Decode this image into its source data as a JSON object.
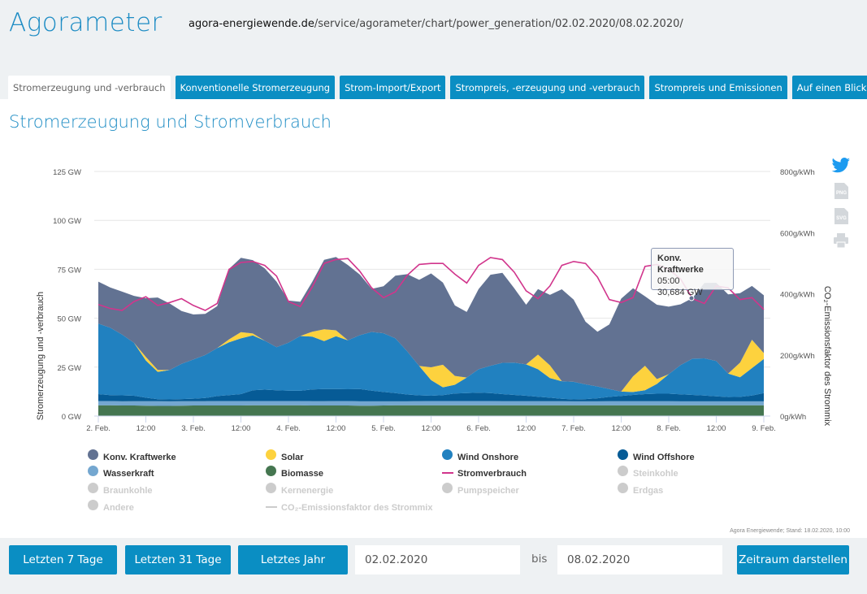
{
  "header": {
    "logo": "Agorameter",
    "url_domain": "agora-energiewende.de",
    "url_path": "/service/agorameter/chart/power_generation/02.02.2020/08.02.2020/"
  },
  "tabs": [
    {
      "label": "Stromerzeugung und -verbrauch",
      "active": true
    },
    {
      "label": "Konventionelle Stromerzeugung",
      "active": false
    },
    {
      "label": "Strom-Import/Export",
      "active": false
    },
    {
      "label": "Strompreis, -erzeugung und -verbrauch",
      "active": false
    },
    {
      "label": "Strompreis und Emissionen",
      "active": false
    },
    {
      "label": "Auf einen Blick",
      "active": false
    }
  ],
  "page_title": "Stromerzeugung und Stromverbrauch",
  "share": {
    "twitter_icon": "twitter-icon",
    "png_label": "PNG",
    "svg_label": "SVG",
    "print_icon": "print-icon"
  },
  "tooltip": {
    "series": "Konv. Kraftwerke",
    "time": "05:00",
    "value": "30,684 GW"
  },
  "credit": "Agora Energiewende; Stand: 18.02.2020, 10:00",
  "footer": {
    "btn_7": "Letzten 7 Tage",
    "btn_31": "Letzten 31 Tage",
    "btn_year": "Letztes Jahr",
    "from_value": "02.02.2020",
    "bis": "bis",
    "to_value": "08.02.2020",
    "submit": "Zeitraum darstellen"
  },
  "chart_data": {
    "type": "area",
    "stacked": true,
    "title": "Stromerzeugung und Stromverbrauch",
    "xlabel": "",
    "ylabel": "Stromerzeugung und -verbrauch",
    "ylabel_right": "CO₂-Emissionsfaktor des Strommix",
    "ylim": [
      0,
      125
    ],
    "ylim_right": [
      0,
      800
    ],
    "y_ticks": [
      "0 GW",
      "25 GW",
      "50 GW",
      "75 GW",
      "100 GW",
      "125 GW"
    ],
    "y_ticks_right": [
      "0g/kWh",
      "200g/kWh",
      "400g/kWh",
      "600g/kWh",
      "800g/kWh"
    ],
    "x_ticks": [
      "2. Feb.",
      "12:00",
      "3. Feb.",
      "12:00",
      "4. Feb.",
      "12:00",
      "5. Feb.",
      "12:00",
      "6. Feb.",
      "12:00",
      "7. Feb.",
      "12:00",
      "8. Feb.",
      "12:00",
      "9. Feb."
    ],
    "x_unit": "hours since 2. Feb. 00:00",
    "x_step_hours": 3,
    "x_count": 57,
    "grid": true,
    "legend_position": "bottom",
    "series": [
      {
        "name": "Biomasse",
        "color": "#457650",
        "visible": true,
        "values": [
          5.5,
          5.5,
          5.4,
          5.4,
          5.3,
          5.2,
          5.2,
          5.3,
          5.4,
          5.4,
          5.4,
          5.4,
          5.4,
          5.5,
          5.5,
          5.5,
          5.5,
          5.5,
          5.4,
          5.4,
          5.4,
          5.4,
          5.3,
          5.3,
          5.4,
          5.5,
          5.5,
          5.5,
          5.5,
          5.5,
          5.5,
          5.5,
          5.5,
          5.5,
          5.5,
          5.5,
          5.5,
          5.5,
          5.5,
          5.5,
          5.5,
          5.5,
          5.5,
          5.5,
          5.5,
          5.5,
          5.5,
          5.5,
          5.5,
          5.5,
          5.5,
          5.5,
          5.5,
          5.5,
          5.5,
          5.5,
          5.5
        ]
      },
      {
        "name": "Wasserkraft",
        "color": "#74a7d0",
        "visible": true,
        "values": [
          2.2,
          2.2,
          2.1,
          2.2,
          2.3,
          2.4,
          2.3,
          2.3,
          2.2,
          2.2,
          2.3,
          2.3,
          2.3,
          2.2,
          2.2,
          2.2,
          2.2,
          2.2,
          2.2,
          2.2,
          2.3,
          2.3,
          2.2,
          2.2,
          2.1,
          2.0,
          2.0,
          2.1,
          2.2,
          2.2,
          2.2,
          2.2,
          2.2,
          2.2,
          2.1,
          2.1,
          2.1,
          2.1,
          2.1,
          2.1,
          2.0,
          2.0,
          2.0,
          2.1,
          2.1,
          2.1,
          2.1,
          2.1,
          2.1,
          2.0,
          2.0,
          2.0,
          2.0,
          2.0,
          2.0,
          2.0,
          2.0
        ]
      },
      {
        "name": "Wind Offshore",
        "color": "#065b96",
        "visible": true,
        "values": [
          3.5,
          3.0,
          3.1,
          2.8,
          1.8,
          1.0,
          1.0,
          1.1,
          1.3,
          1.6,
          2.5,
          3.0,
          3.5,
          5.5,
          5.8,
          5.5,
          5.3,
          5.2,
          6.0,
          6.2,
          6.1,
          6.0,
          6.3,
          5.5,
          4.8,
          4.2,
          3.5,
          3.0,
          2.7,
          3.0,
          3.8,
          4.0,
          4.2,
          4.0,
          3.6,
          3.2,
          2.8,
          2.3,
          1.8,
          1.2,
          1.0,
          1.2,
          1.6,
          2.2,
          2.7,
          3.2,
          3.6,
          3.8,
          3.8,
          3.6,
          3.3,
          3.0,
          2.6,
          2.2,
          2.3,
          3.0,
          4.2
        ]
      },
      {
        "name": "Wind Onshore",
        "color": "#2181c0",
        "visible": true,
        "values": [
          36.0,
          34.5,
          31.0,
          27.0,
          19.0,
          14.0,
          15.0,
          18.0,
          20.0,
          22.0,
          24.5,
          27.0,
          28.5,
          28.0,
          25.0,
          22.0,
          24.5,
          28.0,
          27.0,
          24.5,
          27.0,
          25.0,
          27.5,
          30.0,
          30.0,
          28.0,
          22.0,
          15.0,
          8.0,
          4.0,
          4.5,
          8.0,
          12.0,
          14.0,
          16.0,
          16.5,
          16.0,
          14.0,
          10.0,
          9.0,
          9.0,
          7.5,
          6.0,
          4.0,
          2.2,
          1.5,
          2.0,
          5.0,
          10.0,
          15.0,
          18.5,
          19.0,
          18.0,
          12.0,
          10.0,
          14.0,
          17.5
        ]
      },
      {
        "name": "Solar",
        "color": "#fdd23e",
        "visible": true,
        "values": [
          0,
          0,
          0,
          0,
          1.8,
          1.0,
          0,
          0,
          0,
          0,
          0,
          1.5,
          3.2,
          1.0,
          0,
          0,
          0,
          0,
          2.5,
          6.0,
          3.0,
          0,
          0,
          0,
          0,
          0,
          0,
          0,
          6.5,
          11.5,
          4.5,
          0,
          0,
          0,
          0,
          0,
          0,
          7.5,
          6.5,
          0,
          0,
          0,
          0,
          0,
          0,
          8.0,
          12.5,
          2.5,
          0,
          0,
          0,
          0,
          0,
          0,
          7.5,
          14.5,
          3.0
        ]
      },
      {
        "name": "Konv. Kraftwerke",
        "color": "#627292",
        "visible": true,
        "values": [
          21.5,
          20.5,
          22.0,
          24.0,
          30.0,
          37.0,
          34.0,
          27.0,
          23.0,
          21.0,
          21.5,
          36.0,
          38.0,
          37.5,
          37.0,
          33.5,
          21.5,
          17.5,
          25.5,
          35.5,
          37.5,
          38.5,
          31.0,
          22.0,
          24.0,
          32.0,
          39.5,
          44.0,
          48.0,
          42.0,
          36.0,
          33.5,
          41.0,
          46.5,
          46.0,
          38.0,
          30.5,
          33.5,
          36.0,
          47.0,
          42.0,
          32.0,
          28.0,
          33.0,
          47.5,
          45.0,
          35.5,
          38.0,
          34.5,
          31.0,
          31.0,
          38.5,
          40.0,
          40.5,
          35.5,
          27.5,
          29.5
        ]
      }
    ],
    "line_series": [
      {
        "name": "Stromverbrauch",
        "color": "#d1358c",
        "visible": true,
        "values": [
          57.0,
          55.0,
          54.0,
          58.5,
          61.0,
          56.5,
          58.0,
          60.0,
          56.5,
          54.0,
          57.5,
          75.0,
          78.5,
          79.0,
          77.0,
          71.5,
          58.5,
          56.0,
          66.0,
          78.0,
          80.0,
          80.5,
          74.0,
          65.5,
          60.5,
          63.5,
          72.0,
          77.5,
          78.0,
          78.0,
          72.5,
          68.0,
          77.0,
          81.0,
          80.0,
          73.5,
          64.0,
          60.0,
          66.5,
          77.0,
          79.0,
          78.0,
          71.0,
          59.5,
          58.0,
          60.5,
          76.5,
          77.5,
          75.0,
          70.0,
          60.0,
          57.5,
          66.5,
          65.5,
          59.5,
          60.5,
          54.5
        ]
      },
      {
        "name": "CO₂-Emissionsfaktor des Strommix",
        "color": "#cccccc",
        "visible": false,
        "values": []
      }
    ],
    "hidden_series": [
      "Steinkohle",
      "Braunkohle",
      "Kernenergie",
      "Pumpspeicher",
      "Erdgas",
      "Andere"
    ],
    "legend": [
      {
        "name": "Konv. Kraftwerke",
        "color": "#627292",
        "kind": "dot",
        "visible": true
      },
      {
        "name": "Solar",
        "color": "#fdd23e",
        "kind": "dot",
        "visible": true
      },
      {
        "name": "Wind Onshore",
        "color": "#2181c0",
        "kind": "dot",
        "visible": true
      },
      {
        "name": "Wind Offshore",
        "color": "#065b96",
        "kind": "dot",
        "visible": true
      },
      {
        "name": "Wasserkraft",
        "color": "#74a7d0",
        "kind": "dot",
        "visible": true
      },
      {
        "name": "Biomasse",
        "color": "#457650",
        "kind": "dot",
        "visible": true
      },
      {
        "name": "Stromverbrauch",
        "color": "#d1358c",
        "kind": "line",
        "visible": true
      },
      {
        "name": "Steinkohle",
        "color": "#cccccc",
        "kind": "dot",
        "visible": false
      },
      {
        "name": "Braunkohle",
        "color": "#cccccc",
        "kind": "dot",
        "visible": false
      },
      {
        "name": "Kernenergie",
        "color": "#cccccc",
        "kind": "dot",
        "visible": false
      },
      {
        "name": "Pumpspeicher",
        "color": "#cccccc",
        "kind": "dot",
        "visible": false
      },
      {
        "name": "Erdgas",
        "color": "#cccccc",
        "kind": "dot",
        "visible": false
      },
      {
        "name": "Andere",
        "color": "#cccccc",
        "kind": "dot",
        "visible": false
      },
      {
        "name": "CO₂-Emissionsfaktor des Strommix",
        "color": "#cccccc",
        "kind": "line",
        "visible": false
      }
    ]
  }
}
